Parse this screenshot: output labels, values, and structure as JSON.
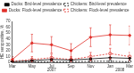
{
  "chart_data": {
    "type": "line",
    "y_label": "HE seropositive, %",
    "categories": [
      "Mar",
      "May",
      "Jul",
      "Sep",
      "Nov",
      "Jan",
      "Mar"
    ],
    "annotations": [
      {
        "text": "2007",
        "span": [
          0,
          4
        ]
      },
      {
        "text": "2008",
        "span": [
          5,
          6
        ]
      }
    ],
    "series": [
      {
        "name": "Ducks: Bird-level prevalence",
        "color": "#000000",
        "marker": "diamond",
        "line_style": "solid",
        "values": [
          1,
          3,
          5,
          4,
          6,
          8,
          7
        ]
      },
      {
        "name": "Chickens: Bird-level prevalence",
        "color": "#000000",
        "marker": "circle",
        "line_style": "dashed",
        "values": [
          0,
          1,
          1,
          1,
          2,
          2,
          1
        ]
      },
      {
        "name": "Ducks: Flock-level prevalence",
        "color": "#e0302a",
        "marker": "diamond",
        "line_style": "solid",
        "values": [
          5,
          33,
          30,
          20,
          43,
          47,
          46
        ],
        "errors": [
          5,
          15,
          14,
          12,
          16,
          17,
          16
        ]
      },
      {
        "name": "Chickens: Flock-level prevalence",
        "color": "#e0302a",
        "marker": "circle",
        "line_style": "dashed",
        "values": [
          2,
          5,
          8,
          5,
          10,
          15,
          10
        ],
        "errors": [
          2,
          5,
          6,
          5,
          7,
          9,
          7
        ]
      }
    ],
    "ylim": [
      0,
      70
    ],
    "yticks": [
      0,
      10,
      20,
      30,
      40,
      50,
      60,
      70
    ],
    "grid": false,
    "legend": "top"
  }
}
